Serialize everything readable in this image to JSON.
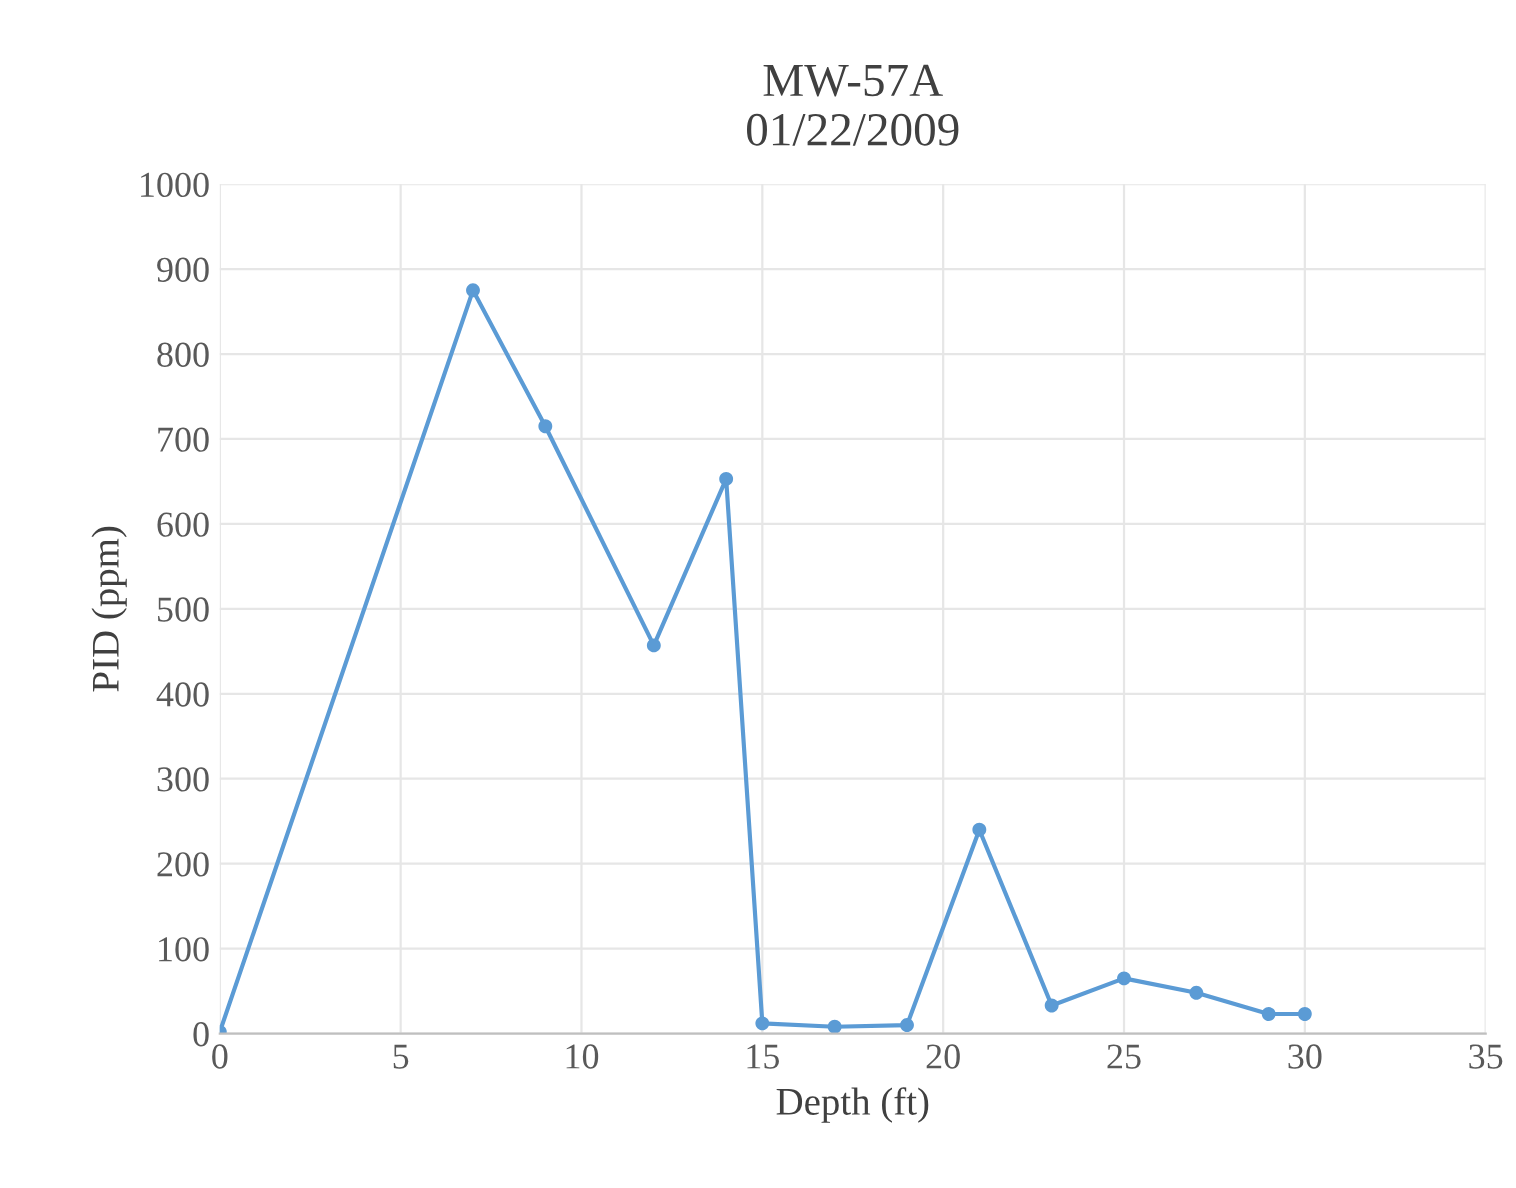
{
  "chart_data": {
    "type": "line",
    "title": "MW-57A\n01/22/2009",
    "xlabel": "Depth (ft)",
    "ylabel": "PID (ppm)",
    "x": [
      0,
      7,
      9,
      12,
      14,
      15,
      17,
      19,
      21,
      23,
      25,
      27,
      29,
      30
    ],
    "series": [
      {
        "color": "#5b9bd5",
        "values": [
          2,
          875,
          715,
          457,
          653,
          12,
          8,
          10,
          240,
          33,
          65,
          48,
          23,
          23
        ]
      }
    ],
    "xlim": [
      0,
      35
    ],
    "xticks": [
      0,
      5,
      10,
      15,
      20,
      25,
      30,
      35
    ],
    "ylim": [
      0,
      1000
    ],
    "yticks": [
      0,
      100,
      200,
      300,
      400,
      500,
      600,
      700,
      800,
      900,
      1000
    ],
    "grid": true,
    "marker": "circle",
    "line_style": "solid"
  }
}
